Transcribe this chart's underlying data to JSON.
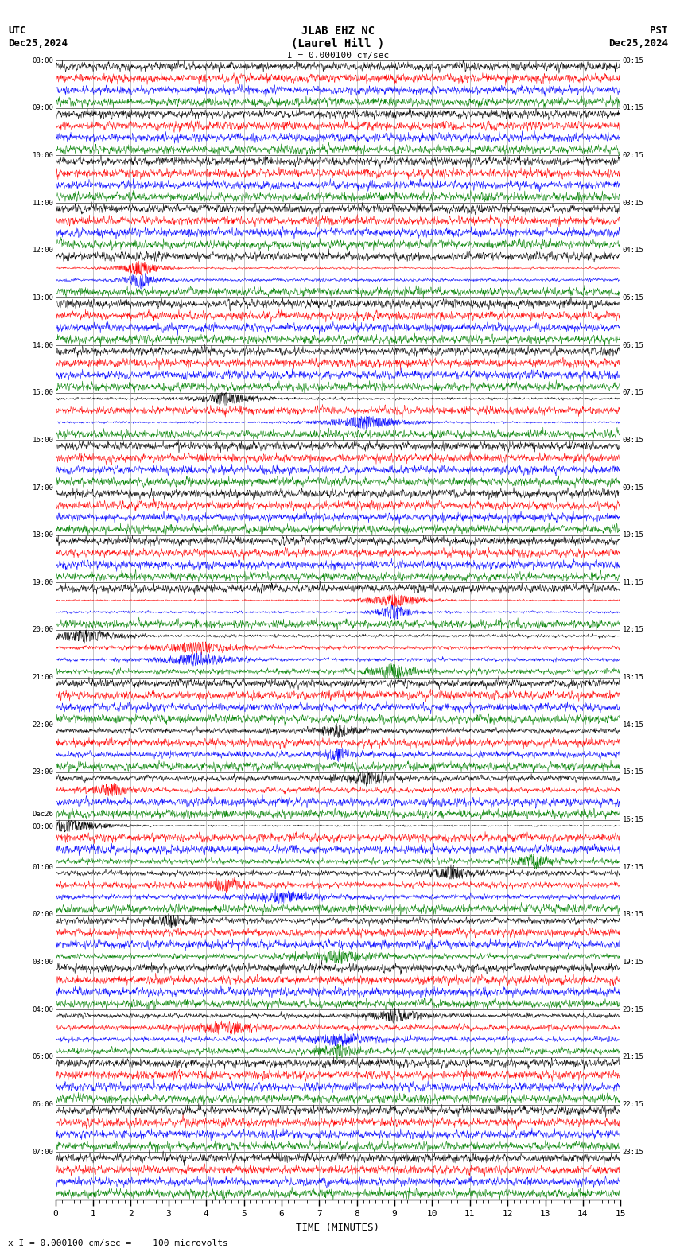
{
  "title_line1": "JLAB EHZ NC",
  "title_line2": "(Laurel Hill )",
  "scale_label": "I = 0.000100 cm/sec",
  "utc_label": "UTC",
  "utc_date": "Dec25,2024",
  "pst_label": "PST",
  "pst_date": "Dec25,2024",
  "bottom_label": "TIME (MINUTES)",
  "bottom_scale": "x I = 0.000100 cm/sec =    100 microvolts",
  "background_color": "#ffffff",
  "trace_colors": [
    "black",
    "red",
    "blue",
    "green"
  ],
  "left_label_times_utc": [
    "08:00",
    "09:00",
    "10:00",
    "11:00",
    "12:00",
    "13:00",
    "14:00",
    "15:00",
    "16:00",
    "17:00",
    "18:00",
    "19:00",
    "20:00",
    "21:00",
    "22:00",
    "23:00",
    "Dec26|00:00",
    "01:00",
    "02:00",
    "03:00",
    "04:00",
    "05:00",
    "06:00",
    "07:00"
  ],
  "right_label_times_pst": [
    "00:15",
    "01:15",
    "02:15",
    "03:15",
    "04:15",
    "05:15",
    "06:15",
    "07:15",
    "08:15",
    "09:15",
    "10:15",
    "11:15",
    "12:15",
    "13:15",
    "14:15",
    "15:15",
    "16:15",
    "17:15",
    "18:15",
    "19:15",
    "20:15",
    "21:15",
    "22:15",
    "23:15"
  ],
  "grid_color": "#999999",
  "noise_base": [
    0.018,
    0.008,
    0.01,
    0.007
  ],
  "noise_active": [
    0.045,
    0.025,
    0.03,
    0.018
  ]
}
